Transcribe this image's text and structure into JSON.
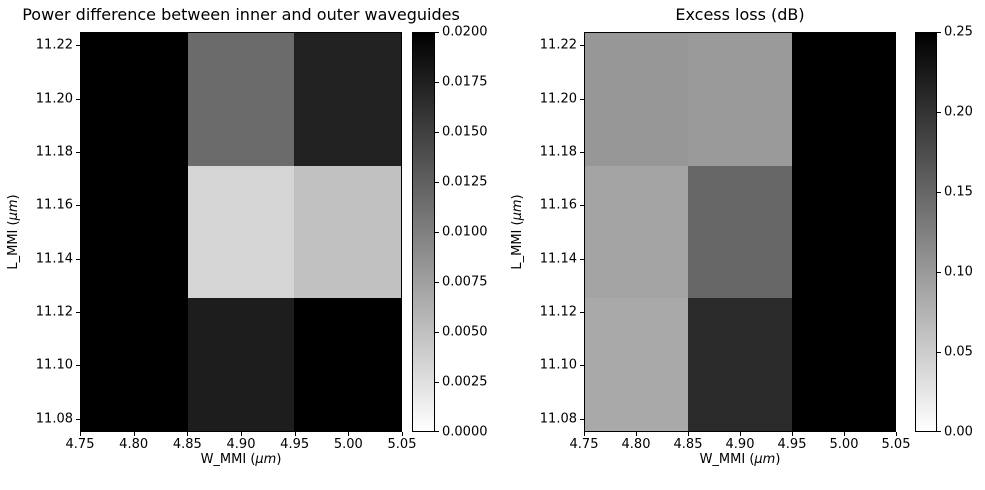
{
  "figure": {
    "background_color": "#ffffff",
    "text_color": "#000000"
  },
  "chart_data": [
    {
      "type": "heatmap",
      "title": "Power difference between inner and outer waveguides",
      "xlabel": {
        "prefix": "W_MMI (",
        "unit": "μm",
        "suffix": ")"
      },
      "ylabel": {
        "prefix": "L_MMI (",
        "unit": "μm",
        "suffix": ")"
      },
      "xlim": [
        4.75,
        5.05
      ],
      "ylim": [
        11.075,
        11.225
      ],
      "x_tick_labels": [
        "4.75",
        "4.80",
        "4.85",
        "4.90",
        "4.95",
        "5.00",
        "5.05"
      ],
      "y_tick_labels": [
        "11.08",
        "11.10",
        "11.12",
        "11.14",
        "11.16",
        "11.18",
        "11.20",
        "11.22"
      ],
      "col_centers": [
        4.8,
        4.9,
        5.0
      ],
      "row_centers_top_to_bottom": [
        11.2,
        11.15,
        11.1
      ],
      "values_rows_top_to_bottom": [
        [
          0.02,
          0.0116,
          0.0174
        ],
        [
          0.02,
          0.0032,
          0.0048
        ],
        [
          0.02,
          0.0177,
          0.02
        ]
      ],
      "cell_colors_rows_top_to_bottom": [
        [
          "#000000",
          "#6b6b6b",
          "#212121"
        ],
        [
          "#000000",
          "#d5d5d5",
          "#c1c1c1"
        ],
        [
          "#000000",
          "#1d1d1d",
          "#000000"
        ]
      ],
      "colormap": "Greys (white=min, black=max)",
      "grid": false,
      "colorbar": {
        "vmin": 0.0,
        "vmax": 0.02,
        "tick_labels": [
          "0.0200",
          "0.0175",
          "0.0150",
          "0.0125",
          "0.0100",
          "0.0075",
          "0.0050",
          "0.0025",
          "0.0000"
        ],
        "top_color": "#000000",
        "bottom_color": "#ffffff"
      }
    },
    {
      "type": "heatmap",
      "title": "Excess loss (dB)",
      "xlabel": {
        "prefix": "W_MMI (",
        "unit": "μm",
        "suffix": ")"
      },
      "ylabel": {
        "prefix": "L_MMI (",
        "unit": "μm",
        "suffix": ")"
      },
      "xlim": [
        4.75,
        5.05
      ],
      "ylim": [
        11.075,
        11.225
      ],
      "x_tick_labels": [
        "4.75",
        "4.80",
        "4.85",
        "4.90",
        "4.95",
        "5.00",
        "5.05"
      ],
      "y_tick_labels": [
        "11.08",
        "11.10",
        "11.12",
        "11.14",
        "11.16",
        "11.18",
        "11.20",
        "11.22"
      ],
      "col_centers": [
        4.8,
        4.9,
        5.0
      ],
      "row_centers_top_to_bottom": [
        11.2,
        11.15,
        11.1
      ],
      "values_rows_top_to_bottom": [
        [
          0.102,
          0.099,
          0.25
        ],
        [
          0.089,
          0.15,
          0.25
        ],
        [
          0.084,
          0.209,
          0.25
        ]
      ],
      "cell_colors_rows_top_to_bottom": [
        [
          "#979797",
          "#9a9a9a",
          "#000000"
        ],
        [
          "#a4a4a4",
          "#676767",
          "#000000"
        ],
        [
          "#a9a9a9",
          "#2a2a2a",
          "#000000"
        ]
      ],
      "colormap": "Greys (white=min, black=max)",
      "grid": false,
      "colorbar": {
        "vmin": 0.0,
        "vmax": 0.25,
        "tick_labels": [
          "0.25",
          "0.20",
          "0.15",
          "0.10",
          "0.05",
          "0.00"
        ],
        "top_color": "#000000",
        "bottom_color": "#ffffff"
      }
    }
  ]
}
